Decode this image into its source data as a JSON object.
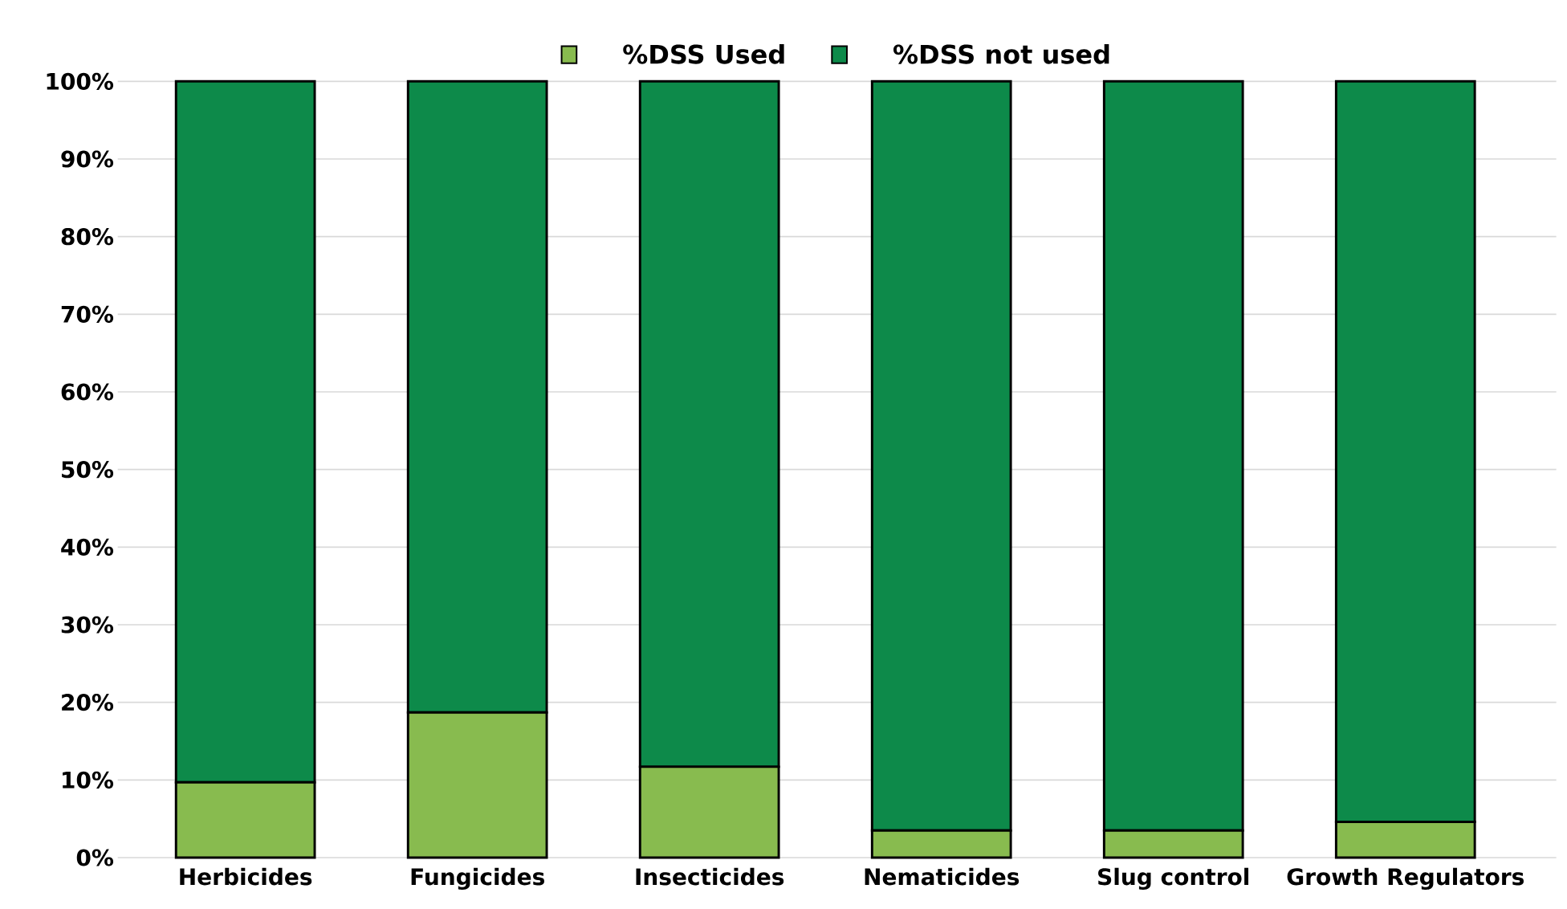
{
  "chart_data": {
    "type": "bar",
    "stacked": true,
    "categories": [
      "Herbicides",
      "Fungicides",
      "Insecticides",
      "Nematicides",
      "Slug control",
      "Growth Regulators"
    ],
    "series": [
      {
        "name": "%DSS Used",
        "color": "#88bb4f",
        "values": [
          9.7,
          18.7,
          11.7,
          3.5,
          3.5,
          4.6
        ]
      },
      {
        "name": "%DSS not used",
        "color": "#0d8a4a",
        "values": [
          90.3,
          81.3,
          88.3,
          96.5,
          96.5,
          95.4
        ]
      }
    ],
    "ylim": [
      0,
      100
    ],
    "yticks": [
      {
        "value": 0,
        "label": "0%"
      },
      {
        "value": 10,
        "label": "10%"
      },
      {
        "value": 20,
        "label": "20%"
      },
      {
        "value": 30,
        "label": "30%"
      },
      {
        "value": 40,
        "label": "40%"
      },
      {
        "value": 50,
        "label": "50%"
      },
      {
        "value": 60,
        "label": "60%"
      },
      {
        "value": 70,
        "label": "70%"
      },
      {
        "value": 80,
        "label": "80%"
      },
      {
        "value": 90,
        "label": "90%"
      },
      {
        "value": 100,
        "label": "100%"
      }
    ],
    "grid": "y",
    "legend": "top"
  }
}
